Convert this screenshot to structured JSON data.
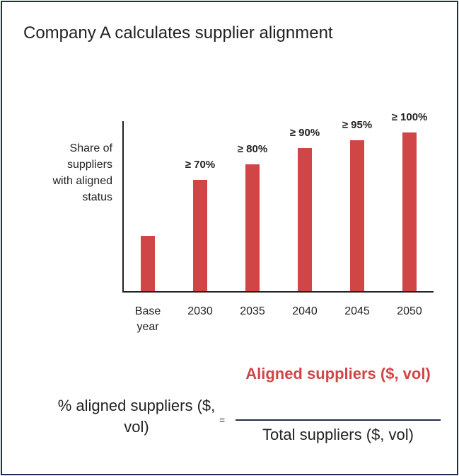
{
  "chart_data": {
    "type": "bar",
    "title": "Company A calculates supplier alignment",
    "y_label": "Share of suppliers with aligned status",
    "categories": [
      "Base year",
      "2030",
      "2035",
      "2040",
      "2045",
      "2050"
    ],
    "values": [
      35,
      70,
      80,
      90,
      95,
      100
    ],
    "value_labels": [
      null,
      "≥ 70%",
      "≥ 80%",
      "≥ 90%",
      "≥ 95%",
      "≥ 100%"
    ],
    "color": "#d04546",
    "ylim": [
      0,
      100
    ],
    "formula": {
      "left": "% aligned suppliers ($, vol)",
      "equals": "=",
      "numerator": "Aligned suppliers ($, vol)",
      "denominator": "Total suppliers ($, vol)"
    }
  }
}
